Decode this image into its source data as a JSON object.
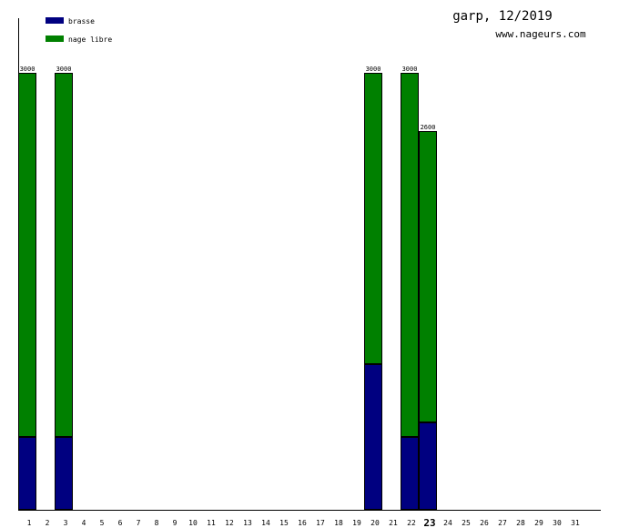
{
  "chart_data": {
    "type": "bar",
    "stacked": true,
    "title": "garp, 12/2019",
    "subtitle": "www.nageurs.com",
    "categories": [
      "1",
      "2",
      "3",
      "4",
      "5",
      "6",
      "7",
      "8",
      "9",
      "10",
      "11",
      "12",
      "13",
      "14",
      "15",
      "16",
      "17",
      "18",
      "19",
      "20",
      "21",
      "22",
      "23",
      "24",
      "25",
      "26",
      "27",
      "28",
      "29",
      "30",
      "31"
    ],
    "highlight_category": "23",
    "ylim": [
      0,
      3375
    ],
    "legend_position": "top-left",
    "grid": false,
    "series": [
      {
        "name": "brasse",
        "color": "#000080",
        "values": [
          500,
          0,
          500,
          0,
          0,
          0,
          0,
          0,
          0,
          0,
          0,
          0,
          0,
          0,
          0,
          0,
          0,
          0,
          0,
          1000,
          0,
          500,
          600,
          0,
          0,
          0,
          0,
          0,
          0,
          0,
          0
        ]
      },
      {
        "name": "nage libre",
        "color": "#008000",
        "values": [
          2500,
          0,
          2500,
          0,
          0,
          0,
          0,
          0,
          0,
          0,
          0,
          0,
          0,
          0,
          0,
          0,
          0,
          0,
          0,
          2000,
          0,
          2500,
          2000,
          0,
          0,
          0,
          0,
          0,
          0,
          0,
          0
        ]
      }
    ],
    "totals": [
      3000,
      0,
      3000,
      0,
      0,
      0,
      0,
      0,
      0,
      0,
      0,
      0,
      0,
      0,
      0,
      0,
      0,
      0,
      0,
      3000,
      0,
      3000,
      2600,
      0,
      0,
      0,
      0,
      0,
      0,
      0,
      0
    ]
  }
}
